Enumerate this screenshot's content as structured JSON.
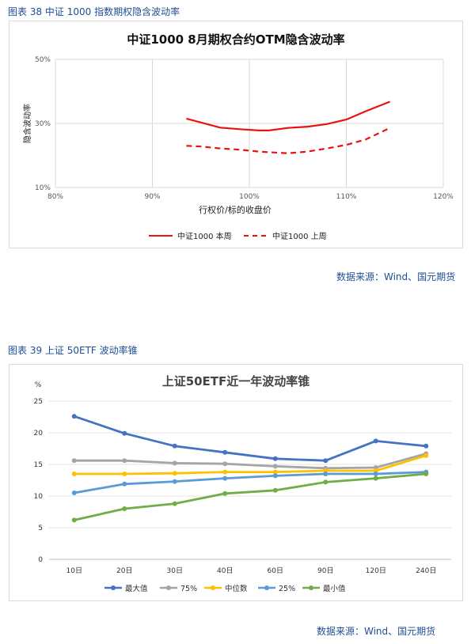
{
  "figure1": {
    "caption": "图表 38  中证 1000 指数期权隐含波动率",
    "source": "数据来源：Wind、国元期货"
  },
  "figure2": {
    "caption": "图表 39  上证 50ETF 波动率锥",
    "source": "数据来源：Wind、国元期货"
  },
  "chart_data": [
    {
      "type": "line",
      "title": "中证1000  8月期权合约OTM隐含波动率",
      "xlabel": "行权价/标的收盘价",
      "ylabel": "隐含波动率",
      "xlim": [
        80,
        120
      ],
      "ylim": [
        10,
        50
      ],
      "x_ticks": [
        "80%",
        "90%",
        "100%",
        "110%",
        "120%"
      ],
      "y_ticks": [
        "10%",
        "30%",
        "50%"
      ],
      "grid": true,
      "legend": "bottom",
      "series": [
        {
          "name": "中证1000  本周",
          "color": "#e8130f",
          "dash": false,
          "x": [
            93.5,
            95,
            97,
            99,
            101,
            102,
            104,
            106,
            108,
            110,
            112,
            114.5
          ],
          "y": [
            31.5,
            30.3,
            28.7,
            28.2,
            27.8,
            27.8,
            28.6,
            29.0,
            29.8,
            31.2,
            33.8,
            36.8
          ]
        },
        {
          "name": "中证1000  上周",
          "color": "#e8130f",
          "dash": true,
          "x": [
            93.5,
            95,
            97,
            99,
            101,
            102,
            104,
            106,
            108,
            110,
            112,
            114.5
          ],
          "y": [
            23.0,
            22.8,
            22.2,
            21.8,
            21.2,
            21.0,
            20.7,
            21.2,
            22.2,
            23.3,
            25.0,
            28.6
          ]
        }
      ]
    },
    {
      "type": "line",
      "title": "上证50ETF近一年波动率锥",
      "ylabel": "%",
      "categories": [
        "10日",
        "20日",
        "30日",
        "40日",
        "60日",
        "90日",
        "120日",
        "240日"
      ],
      "ylim": [
        0,
        25
      ],
      "y_ticks": [
        "0",
        "5",
        "10",
        "15",
        "20",
        "25"
      ],
      "grid": true,
      "legend": "bottom",
      "series": [
        {
          "name": "最大值",
          "color": "#4472c4",
          "values": [
            22.6,
            19.9,
            17.9,
            16.9,
            15.9,
            15.6,
            18.7,
            17.9
          ]
        },
        {
          "name": "75%",
          "color": "#a5a5a5",
          "values": [
            15.6,
            15.6,
            15.2,
            15.1,
            14.7,
            14.4,
            14.5,
            16.7
          ]
        },
        {
          "name": "中位数",
          "color": "#ffc000",
          "values": [
            13.5,
            13.5,
            13.6,
            13.8,
            13.8,
            14.0,
            14.0,
            16.4
          ]
        },
        {
          "name": "25%",
          "color": "#5b9bd5",
          "values": [
            10.5,
            11.9,
            12.3,
            12.8,
            13.2,
            13.5,
            13.5,
            13.8
          ]
        },
        {
          "name": "最小值",
          "color": "#70ad47",
          "values": [
            6.2,
            8.0,
            8.8,
            10.4,
            10.9,
            12.2,
            12.8,
            13.5
          ]
        }
      ]
    }
  ]
}
